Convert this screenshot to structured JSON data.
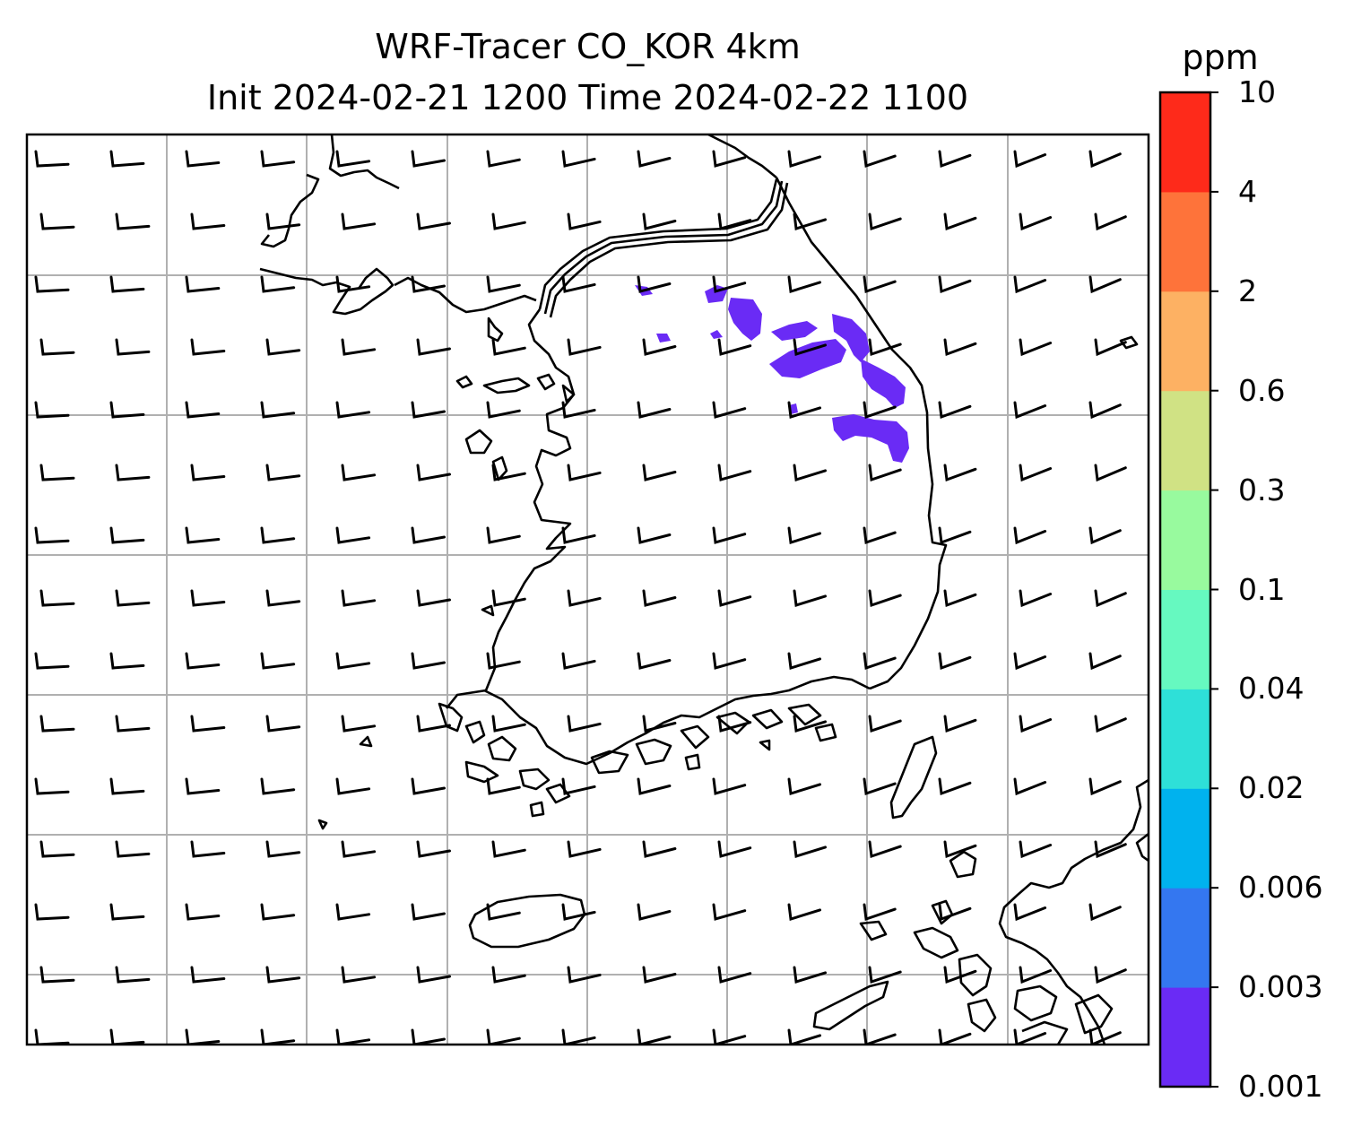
{
  "title": {
    "line1": "WRF-Tracer CO_KOR 4km",
    "line2": "Init 2024-02-21 1200 Time 2024-02-22 1100"
  },
  "colorbar": {
    "unit": "ppm",
    "ticks": [
      "0.001",
      "0.003",
      "0.006",
      "0.02",
      "0.04",
      "0.1",
      "0.3",
      "0.6",
      "2",
      "4",
      "10"
    ],
    "colors": [
      "#6a2bf5",
      "#3477f0",
      "#00b2ee",
      "#2ee0d8",
      "#66f9c0",
      "#98fa9e",
      "#d0e284",
      "#fdb163",
      "#fe733a",
      "#fe2a1a"
    ]
  },
  "map": {
    "region": "Korean Peninsula",
    "plume_color": "#6a2bf5",
    "plume_level": "0.001-0.003 ppm",
    "gridlines": true,
    "wind_barbs": true
  }
}
